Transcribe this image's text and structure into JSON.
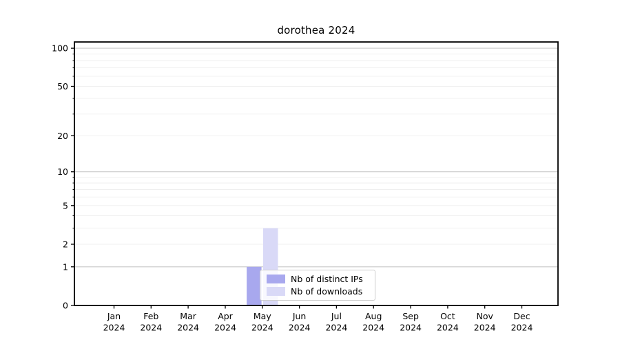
{
  "figure": {
    "background": "#ffffff"
  },
  "chart_data": {
    "type": "bar",
    "title": "dorothea 2024",
    "categories": [
      "Jan 2024",
      "Feb 2024",
      "Mar 2024",
      "Apr 2024",
      "May 2024",
      "Jun 2024",
      "Jul 2024",
      "Aug 2024",
      "Sep 2024",
      "Oct 2024",
      "Nov 2024",
      "Dec 2024"
    ],
    "series": [
      {
        "name": "Nb of distinct IPs",
        "color": "#a8a8ee",
        "values": [
          0,
          0,
          0,
          0,
          1,
          0,
          0,
          0,
          0,
          0,
          0,
          0
        ]
      },
      {
        "name": "Nb of downloads",
        "color": "#d9d9f7",
        "values": [
          0,
          0,
          0,
          0,
          3,
          0,
          0,
          0,
          0,
          0,
          0,
          0
        ]
      }
    ],
    "xlabel": "",
    "ylabel": "",
    "yticks": [
      0,
      1,
      2,
      5,
      10,
      20,
      50,
      100
    ],
    "ylim": [
      0,
      112
    ],
    "yscale": "log1p",
    "grid": {
      "on": true,
      "major_lines_at": [
        1,
        10,
        100
      ],
      "major_color": "#c8c8c8",
      "minor_color": "#efefef"
    },
    "legend_position": "inside lower center",
    "axis_color": "#000000"
  }
}
